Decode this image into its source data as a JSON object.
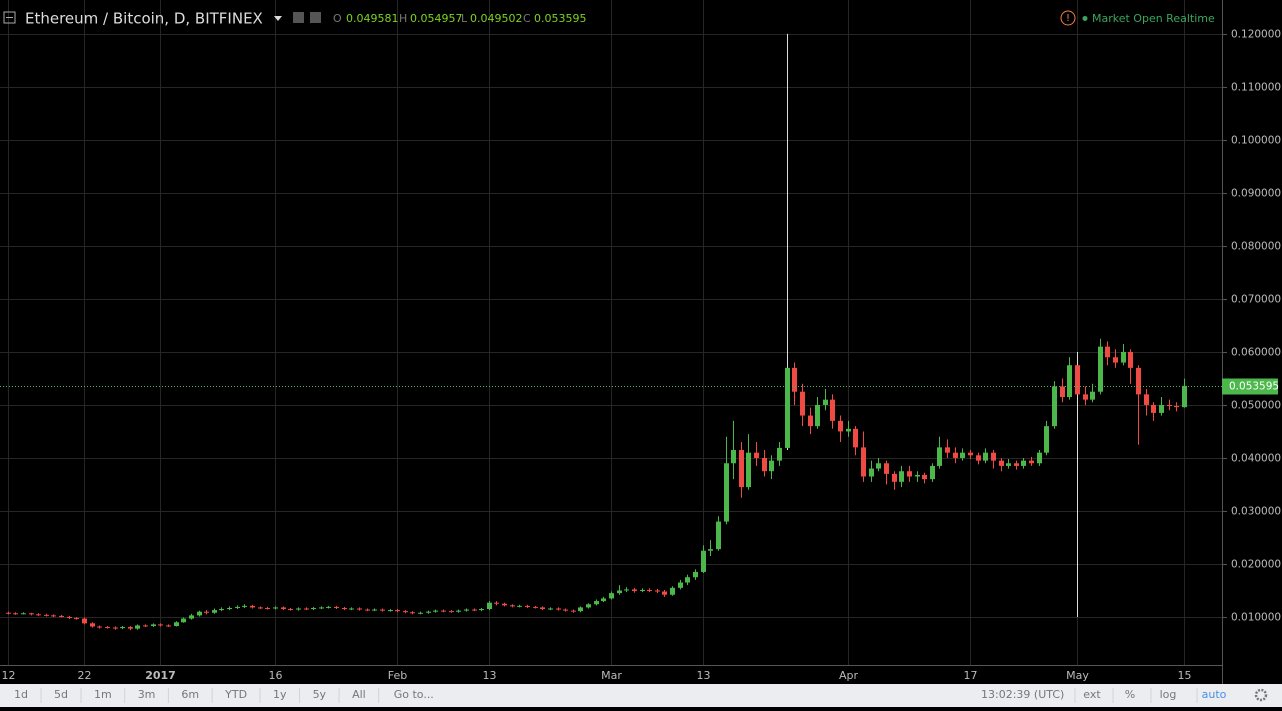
{
  "header": {
    "title": "Ethereum / Bitcoin, D, BITFINEX",
    "ohlc_labels": [
      "O",
      "H",
      "L",
      "C"
    ],
    "status": "Market Open Realtime"
  },
  "chart_data": {
    "type": "candlestick",
    "x": [
      "2016-12-12",
      "2016-12-13",
      "2016-12-14",
      "2016-12-15",
      "2016-12-16",
      "2016-12-17",
      "2016-12-18",
      "2016-12-19",
      "2016-12-20",
      "2016-12-21",
      "2016-12-22",
      "2016-12-23",
      "2016-12-24",
      "2016-12-25",
      "2016-12-26",
      "2016-12-27",
      "2016-12-28",
      "2016-12-29",
      "2016-12-30",
      "2016-12-31",
      "2017-01-01",
      "2017-01-02",
      "2017-01-03",
      "2017-01-04",
      "2017-01-05",
      "2017-01-06",
      "2017-01-07",
      "2017-01-08",
      "2017-01-09",
      "2017-01-10",
      "2017-01-11",
      "2017-01-12",
      "2017-01-13",
      "2017-01-14",
      "2017-01-15",
      "2017-01-16",
      "2017-01-17",
      "2017-01-18",
      "2017-01-19",
      "2017-01-20",
      "2017-01-21",
      "2017-01-22",
      "2017-01-23",
      "2017-01-24",
      "2017-01-25",
      "2017-01-26",
      "2017-01-27",
      "2017-01-28",
      "2017-01-29",
      "2017-01-30",
      "2017-01-31",
      "2017-02-01",
      "2017-02-02",
      "2017-02-03",
      "2017-02-04",
      "2017-02-05",
      "2017-02-06",
      "2017-02-07",
      "2017-02-08",
      "2017-02-09",
      "2017-02-10",
      "2017-02-11",
      "2017-02-12",
      "2017-02-13",
      "2017-02-14",
      "2017-02-15",
      "2017-02-16",
      "2017-02-17",
      "2017-02-18",
      "2017-02-19",
      "2017-02-20",
      "2017-02-21",
      "2017-02-22",
      "2017-02-23",
      "2017-02-24",
      "2017-02-25",
      "2017-02-26",
      "2017-02-27",
      "2017-02-28",
      "2017-03-01",
      "2017-03-02",
      "2017-03-03",
      "2017-03-04",
      "2017-03-05",
      "2017-03-06",
      "2017-03-07",
      "2017-03-08",
      "2017-03-09",
      "2017-03-10",
      "2017-03-11",
      "2017-03-12",
      "2017-03-13",
      "2017-03-14",
      "2017-03-15",
      "2017-03-16",
      "2017-03-17",
      "2017-03-18",
      "2017-03-19",
      "2017-03-20",
      "2017-03-21",
      "2017-03-22",
      "2017-03-23",
      "2017-03-24",
      "2017-03-25",
      "2017-03-26",
      "2017-03-27",
      "2017-03-28",
      "2017-03-29",
      "2017-03-30",
      "2017-03-31",
      "2017-04-01",
      "2017-04-02",
      "2017-04-03",
      "2017-04-04",
      "2017-04-05",
      "2017-04-06",
      "2017-04-07",
      "2017-04-08",
      "2017-04-09",
      "2017-04-10",
      "2017-04-11",
      "2017-04-12",
      "2017-04-13",
      "2017-04-14",
      "2017-04-15",
      "2017-04-16",
      "2017-04-17",
      "2017-04-18",
      "2017-04-19",
      "2017-04-20",
      "2017-04-21",
      "2017-04-22",
      "2017-04-23",
      "2017-04-24",
      "2017-04-25",
      "2017-04-26",
      "2017-04-27",
      "2017-04-28",
      "2017-04-29",
      "2017-04-30",
      "2017-05-01",
      "2017-05-02",
      "2017-05-03",
      "2017-05-04",
      "2017-05-05",
      "2017-05-06",
      "2017-05-07",
      "2017-05-08",
      "2017-05-09",
      "2017-05-10",
      "2017-05-11",
      "2017-05-12",
      "2017-05-13",
      "2017-05-14",
      "2017-05-15"
    ],
    "open": [
      0.0108,
      0.0107,
      0.0106,
      0.0107,
      0.0105,
      0.0104,
      0.0103,
      0.0102,
      0.01,
      0.0098,
      0.0097,
      0.0088,
      0.0082,
      0.0081,
      0.008,
      0.0079,
      0.0081,
      0.0078,
      0.0084,
      0.0083,
      0.0086,
      0.0084,
      0.0083,
      0.009,
      0.0097,
      0.0103,
      0.011,
      0.0108,
      0.0113,
      0.0115,
      0.0117,
      0.0119,
      0.0121,
      0.0118,
      0.0117,
      0.0116,
      0.0118,
      0.0115,
      0.0114,
      0.0116,
      0.0115,
      0.0117,
      0.0118,
      0.0119,
      0.0117,
      0.0115,
      0.0116,
      0.0114,
      0.0113,
      0.0114,
      0.0112,
      0.0113,
      0.0111,
      0.0109,
      0.0107,
      0.0108,
      0.011,
      0.0112,
      0.0111,
      0.011,
      0.0112,
      0.0114,
      0.0113,
      0.0115,
      0.0127,
      0.0125,
      0.0122,
      0.012,
      0.0121,
      0.0119,
      0.0118,
      0.0115,
      0.0116,
      0.0114,
      0.0112,
      0.0111,
      0.0118,
      0.0124,
      0.013,
      0.0135,
      0.0145,
      0.015,
      0.0152,
      0.0149,
      0.0151,
      0.015,
      0.0148,
      0.0142,
      0.0155,
      0.0165,
      0.0175,
      0.0185,
      0.0225,
      0.0228,
      0.028,
      0.039,
      0.0415,
      0.0345,
      0.041,
      0.04,
      0.0375,
      0.0395,
      0.0419,
      0.057,
      0.0525,
      0.048,
      0.046,
      0.05,
      0.051,
      0.047,
      0.045,
      0.0455,
      0.042,
      0.0365,
      0.038,
      0.039,
      0.037,
      0.0355,
      0.0375,
      0.0365,
      0.0368,
      0.036,
      0.0385,
      0.042,
      0.041,
      0.04,
      0.041,
      0.0405,
      0.0395,
      0.041,
      0.0395,
      0.0385,
      0.039,
      0.0385,
      0.0395,
      0.039,
      0.041,
      0.046,
      0.0535,
      0.0515,
      0.0575,
      0.052,
      0.051,
      0.0525,
      0.061,
      0.059,
      0.058,
      0.06,
      0.057,
      0.052,
      0.05,
      0.0485,
      0.05,
      0.0498,
      0.049581
    ],
    "high": [
      0.011,
      0.0109,
      0.0109,
      0.0108,
      0.0107,
      0.0106,
      0.0105,
      0.0104,
      0.0102,
      0.01,
      0.0099,
      0.009,
      0.0084,
      0.0083,
      0.0082,
      0.0083,
      0.0083,
      0.0086,
      0.0086,
      0.0088,
      0.0088,
      0.0086,
      0.0092,
      0.0099,
      0.0106,
      0.0112,
      0.0113,
      0.0116,
      0.0118,
      0.012,
      0.0122,
      0.0124,
      0.0123,
      0.012,
      0.0119,
      0.012,
      0.012,
      0.0117,
      0.0118,
      0.0118,
      0.0119,
      0.012,
      0.0121,
      0.0121,
      0.0119,
      0.0118,
      0.0118,
      0.0116,
      0.0116,
      0.0116,
      0.0115,
      0.0115,
      0.0113,
      0.0111,
      0.011,
      0.0112,
      0.0114,
      0.0114,
      0.0113,
      0.0114,
      0.0116,
      0.0116,
      0.0117,
      0.013,
      0.013,
      0.0127,
      0.0124,
      0.0123,
      0.0123,
      0.0121,
      0.012,
      0.0118,
      0.0118,
      0.0116,
      0.0114,
      0.012,
      0.0126,
      0.0133,
      0.0138,
      0.0148,
      0.016,
      0.0156,
      0.0155,
      0.0154,
      0.0154,
      0.0153,
      0.0151,
      0.0158,
      0.017,
      0.018,
      0.019,
      0.0235,
      0.0245,
      0.029,
      0.044,
      0.047,
      0.043,
      0.0445,
      0.043,
      0.0415,
      0.0405,
      0.043,
      0.12,
      0.058,
      0.054,
      0.0495,
      0.0515,
      0.053,
      0.052,
      0.048,
      0.047,
      0.046,
      0.045,
      0.0395,
      0.04,
      0.0395,
      0.0375,
      0.0385,
      0.0385,
      0.0375,
      0.0372,
      0.039,
      0.044,
      0.0435,
      0.042,
      0.0418,
      0.0415,
      0.041,
      0.0418,
      0.0415,
      0.04,
      0.0398,
      0.0395,
      0.04,
      0.0402,
      0.0415,
      0.047,
      0.0545,
      0.055,
      0.059,
      0.06,
      0.0535,
      0.054,
      0.0625,
      0.062,
      0.0605,
      0.0615,
      0.0605,
      0.0575,
      0.053,
      0.0505,
      0.0515,
      0.051,
      0.0505,
      0.054957
    ],
    "low": [
      0.0105,
      0.0104,
      0.0105,
      0.0103,
      0.0102,
      0.0101,
      0.01,
      0.0099,
      0.0096,
      0.0095,
      0.0086,
      0.008,
      0.0078,
      0.0078,
      0.0076,
      0.0077,
      0.0075,
      0.0076,
      0.0081,
      0.0081,
      0.0082,
      0.0081,
      0.0082,
      0.0089,
      0.0095,
      0.0101,
      0.0105,
      0.0106,
      0.0111,
      0.0113,
      0.0115,
      0.0117,
      0.0116,
      0.0115,
      0.0114,
      0.0114,
      0.0113,
      0.0112,
      0.0112,
      0.0113,
      0.0113,
      0.0115,
      0.0116,
      0.0115,
      0.0113,
      0.0113,
      0.0112,
      0.0111,
      0.0111,
      0.011,
      0.011,
      0.0109,
      0.0107,
      0.0105,
      0.0105,
      0.0106,
      0.0108,
      0.0109,
      0.0108,
      0.0108,
      0.011,
      0.0111,
      0.0111,
      0.0113,
      0.0122,
      0.012,
      0.0118,
      0.0118,
      0.0117,
      0.0116,
      0.0113,
      0.0113,
      0.0112,
      0.011,
      0.0108,
      0.0109,
      0.0116,
      0.0122,
      0.0128,
      0.0133,
      0.0142,
      0.0147,
      0.0146,
      0.0147,
      0.0147,
      0.0145,
      0.0138,
      0.014,
      0.0152,
      0.016,
      0.017,
      0.0183,
      0.0215,
      0.0225,
      0.0275,
      0.036,
      0.0325,
      0.034,
      0.0385,
      0.0365,
      0.036,
      0.0385,
      0.0415,
      0.05,
      0.046,
      0.0445,
      0.0455,
      0.049,
      0.0455,
      0.043,
      0.044,
      0.0405,
      0.0355,
      0.0355,
      0.0375,
      0.035,
      0.034,
      0.0345,
      0.0355,
      0.0355,
      0.0352,
      0.0355,
      0.038,
      0.04,
      0.039,
      0.0395,
      0.0398,
      0.0388,
      0.039,
      0.038,
      0.0375,
      0.038,
      0.0378,
      0.038,
      0.0385,
      0.0385,
      0.0405,
      0.0455,
      0.0505,
      0.051,
      0.01,
      0.05,
      0.0505,
      0.052,
      0.0575,
      0.057,
      0.0575,
      0.054,
      0.0425,
      0.048,
      0.047,
      0.048,
      0.049,
      0.0488,
      0.049502
    ],
    "close": [
      0.0107,
      0.0106,
      0.0107,
      0.0105,
      0.0104,
      0.0103,
      0.0102,
      0.01,
      0.0098,
      0.0097,
      0.0088,
      0.0082,
      0.0081,
      0.008,
      0.0079,
      0.0081,
      0.0078,
      0.0084,
      0.0083,
      0.0086,
      0.0084,
      0.0083,
      0.009,
      0.0097,
      0.0103,
      0.011,
      0.0108,
      0.0113,
      0.0115,
      0.0117,
      0.0119,
      0.0121,
      0.0118,
      0.0117,
      0.0116,
      0.0118,
      0.0115,
      0.0114,
      0.0116,
      0.0115,
      0.0117,
      0.0118,
      0.0119,
      0.0117,
      0.0115,
      0.0116,
      0.0114,
      0.0113,
      0.0114,
      0.0112,
      0.0113,
      0.0111,
      0.0109,
      0.0107,
      0.0108,
      0.011,
      0.0112,
      0.0111,
      0.011,
      0.0112,
      0.0114,
      0.0113,
      0.0115,
      0.0127,
      0.0125,
      0.0122,
      0.012,
      0.0121,
      0.0119,
      0.0118,
      0.0115,
      0.0116,
      0.0114,
      0.0112,
      0.0111,
      0.0118,
      0.0124,
      0.013,
      0.0135,
      0.0145,
      0.015,
      0.0152,
      0.0149,
      0.0151,
      0.015,
      0.0148,
      0.0142,
      0.0155,
      0.0165,
      0.0175,
      0.0185,
      0.0225,
      0.0228,
      0.028,
      0.039,
      0.0415,
      0.0345,
      0.041,
      0.04,
      0.0375,
      0.0395,
      0.0419,
      0.057,
      0.0525,
      0.048,
      0.046,
      0.05,
      0.051,
      0.047,
      0.045,
      0.0455,
      0.042,
      0.0365,
      0.038,
      0.039,
      0.037,
      0.0355,
      0.0375,
      0.0365,
      0.0368,
      0.036,
      0.0385,
      0.042,
      0.041,
      0.04,
      0.041,
      0.0405,
      0.0395,
      0.041,
      0.0395,
      0.0385,
      0.039,
      0.0385,
      0.0395,
      0.039,
      0.041,
      0.046,
      0.0535,
      0.0515,
      0.0575,
      0.052,
      0.051,
      0.0525,
      0.061,
      0.059,
      0.058,
      0.06,
      0.057,
      0.052,
      0.05,
      0.0485,
      0.05,
      0.0498,
      0.049581,
      0.053595
    ],
    "up_color": "#4cb84c",
    "down_color": "#ef4a44",
    "xlim": [
      "2016-12-11",
      "2017-05-20"
    ],
    "xticks": [
      {
        "value": "2016-12-12",
        "label": "12"
      },
      {
        "value": "2016-12-22",
        "label": "22"
      },
      {
        "value": "2017-01-01",
        "label": "2017"
      },
      {
        "value": "2017-01-16",
        "label": "16"
      },
      {
        "value": "2017-02-01",
        "label": "Feb"
      },
      {
        "value": "2017-02-13",
        "label": "13"
      },
      {
        "value": "2017-03-01",
        "label": "Mar"
      },
      {
        "value": "2017-03-13",
        "label": "13"
      },
      {
        "value": "2017-04-01",
        "label": "Apr"
      },
      {
        "value": "2017-04-17",
        "label": "17"
      },
      {
        "value": "2017-05-01",
        "label": "May"
      },
      {
        "value": "2017-05-15",
        "label": "15"
      }
    ],
    "ylim": [
      0.00094,
      0.1264
    ],
    "yticks": [
      {
        "value": 0.01,
        "label": "0.010000"
      },
      {
        "value": 0.02,
        "label": "0.020000"
      },
      {
        "value": 0.03,
        "label": "0.030000"
      },
      {
        "value": 0.04,
        "label": "0.040000"
      },
      {
        "value": 0.05,
        "label": "0.050000"
      },
      {
        "value": 0.06,
        "label": "0.060000"
      },
      {
        "value": 0.07,
        "label": "0.070000"
      },
      {
        "value": 0.08,
        "label": "0.080000"
      },
      {
        "value": 0.09,
        "label": "0.090000"
      },
      {
        "value": 0.1,
        "label": "0.100000"
      },
      {
        "value": 0.11,
        "label": "0.110000"
      },
      {
        "value": 0.12,
        "label": "0.120000"
      }
    ],
    "grid": true
  },
  "toolbar": {
    "ranges": [
      "1d",
      "5d",
      "1m",
      "3m",
      "6m",
      "YTD",
      "1y",
      "5y",
      "All"
    ],
    "goto": "Go to...",
    "time": "13:02:39 (UTC)",
    "options": [
      "ext",
      "%",
      "log",
      "auto"
    ]
  }
}
